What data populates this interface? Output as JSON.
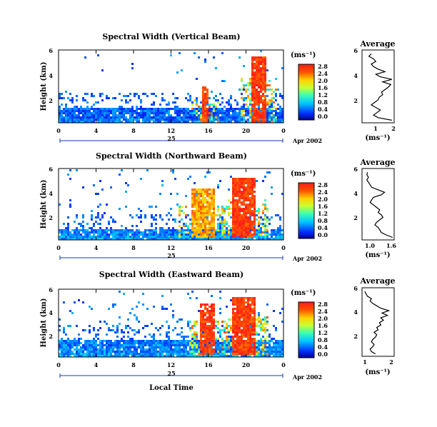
{
  "figure": {
    "date_label": "Apr 2002",
    "day_label": "25",
    "xlabel_bottom": "Local Time",
    "height_label": "Height (km)",
    "unit_label": "(ms⁻¹)",
    "average_title": "Average"
  },
  "chart_data": [
    {
      "type": "heatmap",
      "title": "Spectral Width (Vertical Beam)",
      "ylabel": "Height (km)",
      "x_ticks": [
        "0",
        "4",
        "8",
        "12",
        "16",
        "20",
        "0"
      ],
      "y_ticks": [
        "6",
        "4",
        "2"
      ],
      "xlim": [
        0,
        24
      ],
      "ylim": [
        0.3,
        6
      ],
      "colorbar": {
        "label": "(ms⁻¹)",
        "ticks": [
          "2.8",
          "2.4",
          "2.0",
          "1.6",
          "1.2",
          "0.8",
          "0.4",
          "0.0"
        ],
        "range": [
          0,
          2.8
        ]
      },
      "features": [
        {
          "x": [
            0,
            24
          ],
          "y": [
            0.3,
            1.6
          ],
          "value": 0.5,
          "desc": "low-level layer"
        },
        {
          "x": [
            20.5,
            22
          ],
          "y": [
            0.3,
            5.6
          ],
          "value": 2.8
        },
        {
          "x": [
            15.2,
            15.8
          ],
          "y": [
            0.3,
            3.3
          ],
          "value": 2.8
        }
      ],
      "average": {
        "title": "Average",
        "xlabel": "(ms⁻¹)",
        "x_ticks": [
          "1",
          "2"
        ],
        "y_ticks": [
          "6",
          "4",
          "2"
        ],
        "xlim": [
          0.6,
          2
        ],
        "ylim": [
          0.3,
          6
        ],
        "height": [
          0.5,
          0.7,
          0.9,
          1.1,
          1.3,
          1.5,
          1.7,
          1.9,
          2.1,
          2.3,
          2.5,
          2.7,
          2.9,
          3.1,
          3.3,
          3.5,
          3.7,
          3.9,
          4.1,
          4.3,
          4.5,
          4.7,
          4.9,
          5.1,
          5.3,
          5.5,
          5.7
        ],
        "width": [
          1.9,
          1.3,
          1.1,
          1.25,
          1.4,
          1.2,
          1.0,
          1.15,
          1.3,
          1.35,
          1.5,
          1.45,
          1.6,
          1.75,
          1.85,
          1.5,
          1.9,
          1.4,
          1.2,
          1.6,
          1.3,
          1.1,
          1.0,
          1.2,
          1.1,
          0.9,
          1.0
        ]
      }
    },
    {
      "type": "heatmap",
      "title": "Spectral Width (Northward Beam)",
      "ylabel": "Height (km)",
      "x_ticks": [
        "0",
        "4",
        "8",
        "12",
        "16",
        "20",
        "0"
      ],
      "y_ticks": [
        "6",
        "4",
        "2"
      ],
      "xlim": [
        0,
        24
      ],
      "ylim": [
        0.3,
        6
      ],
      "colorbar": {
        "label": "(ms⁻¹)",
        "ticks": [
          "2.8",
          "2.4",
          "2.0",
          "1.6",
          "1.2",
          "0.8",
          "0.4",
          "0.0"
        ],
        "range": [
          0,
          2.8
        ]
      },
      "features": [
        {
          "x": [
            0,
            24
          ],
          "y": [
            0.3,
            1.2
          ],
          "value": 0.6
        },
        {
          "x": [
            18.5,
            21
          ],
          "y": [
            0.5,
            5.3
          ],
          "value": 2.8
        },
        {
          "x": [
            14,
            16.5
          ],
          "y": [
            0.5,
            4.5
          ],
          "value": 2.4
        }
      ],
      "average": {
        "title": "Average",
        "xlabel": "(ms⁻¹)",
        "x_ticks": [
          "1.0",
          "1.6"
        ],
        "y_ticks": [
          "6",
          "4",
          "2"
        ],
        "xlim": [
          0.75,
          1.75
        ],
        "ylim": [
          0.3,
          6
        ],
        "height": [
          0.5,
          0.7,
          0.9,
          1.1,
          1.3,
          1.5,
          1.7,
          1.9,
          2.1,
          2.3,
          2.5,
          2.7,
          2.9,
          3.1,
          3.3,
          3.5,
          3.7,
          3.9,
          4.1,
          4.3,
          4.5,
          4.7,
          4.9,
          5.1,
          5.3,
          5.5,
          5.7
        ],
        "width": [
          1.7,
          1.5,
          1.35,
          1.3,
          1.25,
          1.15,
          1.2,
          1.3,
          1.4,
          1.35,
          1.25,
          1.3,
          1.2,
          1.1,
          1.0,
          1.05,
          1.1,
          1.35,
          1.45,
          1.25,
          1.05,
          1.0,
          0.95,
          0.9,
          0.95,
          0.9,
          0.92
        ]
      }
    },
    {
      "type": "heatmap",
      "title": "Spectral Width (Eastward Beam)",
      "ylabel": "Height (km)",
      "xlabel": "Local Time",
      "x_ticks": [
        "0",
        "4",
        "8",
        "12",
        "16",
        "20",
        "0"
      ],
      "y_ticks": [
        "6",
        "4",
        "2"
      ],
      "xlim": [
        0,
        24
      ],
      "ylim": [
        0.3,
        6
      ],
      "colorbar": {
        "label": "(ms⁻¹)",
        "ticks": [
          "2.8",
          "2.4",
          "2.0",
          "1.6",
          "1.2",
          "0.8",
          "0.4",
          "0.0"
        ],
        "range": [
          0,
          2.8
        ]
      },
      "features": [
        {
          "x": [
            0,
            24
          ],
          "y": [
            0.3,
            1.8
          ],
          "value": 0.6
        },
        {
          "x": [
            18.5,
            21
          ],
          "y": [
            0.5,
            5.5
          ],
          "value": 2.8
        },
        {
          "x": [
            15,
            16.5
          ],
          "y": [
            0.5,
            4.8
          ],
          "value": 2.8
        }
      ],
      "average": {
        "title": "Average",
        "xlabel": "(ms⁻¹)",
        "x_ticks": [
          "1",
          "2"
        ],
        "y_ticks": [
          "6",
          "4",
          "2"
        ],
        "xlim": [
          0.9,
          2.1
        ],
        "ylim": [
          0.3,
          6
        ],
        "height": [
          0.5,
          0.7,
          0.9,
          1.1,
          1.3,
          1.5,
          1.7,
          1.9,
          2.1,
          2.3,
          2.5,
          2.7,
          2.9,
          3.1,
          3.3,
          3.5,
          3.7,
          3.9,
          4.1,
          4.3,
          4.5,
          4.7,
          4.9,
          5.1,
          5.3,
          5.5,
          5.7
        ],
        "width": [
          1.4,
          1.25,
          1.2,
          1.3,
          1.35,
          1.25,
          1.3,
          1.4,
          1.45,
          1.35,
          1.5,
          1.45,
          1.6,
          1.55,
          1.7,
          1.6,
          1.85,
          1.65,
          1.9,
          1.6,
          1.45,
          1.3,
          1.2,
          1.25,
          1.1,
          1.05,
          1.0
        ]
      }
    }
  ]
}
